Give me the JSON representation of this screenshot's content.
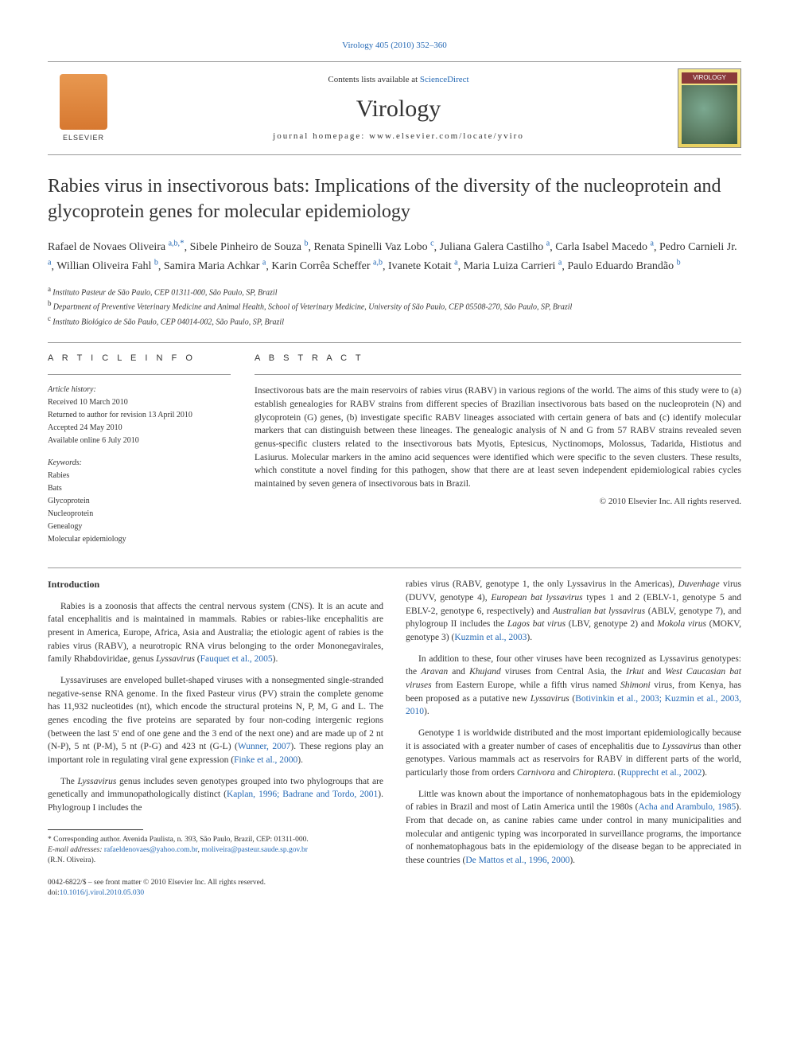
{
  "top_link": "Virology 405 (2010) 352–360",
  "header": {
    "contents_prefix": "Contents lists available at ",
    "contents_link": "ScienceDirect",
    "journal": "Virology",
    "homepage_prefix": "journal homepage: ",
    "homepage": "www.elsevier.com/locate/yviro",
    "publisher_label": "ELSEVIER",
    "cover_label": "VIROLOGY"
  },
  "title": "Rabies virus in insectivorous bats: Implications of the diversity of the nucleoprotein and glycoprotein genes for molecular epidemiology",
  "authors": [
    {
      "name": "Rafael de Novaes Oliveira",
      "aff": "a,b,",
      "star": "*"
    },
    {
      "name": "Sibele Pinheiro de Souza",
      "aff": "b"
    },
    {
      "name": "Renata Spinelli Vaz Lobo",
      "aff": "c"
    },
    {
      "name": "Juliana Galera Castilho",
      "aff": "a"
    },
    {
      "name": "Carla Isabel Macedo",
      "aff": "a"
    },
    {
      "name": "Pedro Carnieli Jr.",
      "aff": "a"
    },
    {
      "name": "Willian Oliveira Fahl",
      "aff": "b"
    },
    {
      "name": "Samira Maria Achkar",
      "aff": "a"
    },
    {
      "name": "Karin Corrêa Scheffer",
      "aff": "a,b"
    },
    {
      "name": "Ivanete Kotait",
      "aff": "a"
    },
    {
      "name": "Maria Luiza Carrieri",
      "aff": "a"
    },
    {
      "name": "Paulo Eduardo Brandão",
      "aff": "b"
    }
  ],
  "affiliations": [
    {
      "sup": "a",
      "text": "Instituto Pasteur de São Paulo, CEP 01311-000, São Paulo, SP, Brazil"
    },
    {
      "sup": "b",
      "text": "Department of Preventive Veterinary Medicine and Animal Health, School of Veterinary Medicine, University of São Paulo, CEP 05508-270, São Paulo, SP, Brazil"
    },
    {
      "sup": "c",
      "text": "Instituto Biológico de São Paulo, CEP 04014-002, São Paulo, SP, Brazil"
    }
  ],
  "info_heading": "A R T I C L E   I N F O",
  "abstract_heading": "A B S T R A C T",
  "history": {
    "label": "Article history:",
    "received": "Received 10 March 2010",
    "revised": "Returned to author for revision 13 April 2010",
    "accepted": "Accepted 24 May 2010",
    "online": "Available online 6 July 2010"
  },
  "keywords": {
    "label": "Keywords:",
    "items": [
      "Rabies",
      "Bats",
      "Glycoprotein",
      "Nucleoprotein",
      "Genealogy",
      "Molecular epidemiology"
    ]
  },
  "abstract": "Insectivorous bats are the main reservoirs of rabies virus (RABV) in various regions of the world. The aims of this study were to (a) establish genealogies for RABV strains from different species of Brazilian insectivorous bats based on the nucleoprotein (N) and glycoprotein (G) genes, (b) investigate specific RABV lineages associated with certain genera of bats and (c) identify molecular markers that can distinguish between these lineages. The genealogic analysis of N and G from 57 RABV strains revealed seven genus-specific clusters related to the insectivorous bats Myotis, Eptesicus, Nyctinomops, Molossus, Tadarida, Histiotus and Lasiurus. Molecular markers in the amino acid sequences were identified which were specific to the seven clusters. These results, which constitute a novel finding for this pathogen, show that there are at least seven independent epidemiological rabies cycles maintained by seven genera of insectivorous bats in Brazil.",
  "copyright": "© 2010 Elsevier Inc. All rights reserved.",
  "intro_heading": "Introduction",
  "left_col": {
    "p1_a": "Rabies is a zoonosis that affects the central nervous system (CNS). It is an acute and fatal encephalitis and is maintained in mammals. Rabies or rabies-like encephalitis are present in America, Europe, Africa, Asia and Australia; the etiologic agent of rabies is the rabies virus (RABV), a neurotropic RNA virus belonging to the order Mononegavirales, family Rhabdoviridae, genus ",
    "p1_i": "Lyssavirus",
    "p1_b": " (",
    "p1_link": "Fauquet et al., 2005",
    "p1_c": ").",
    "p2_a": "Lyssaviruses are enveloped bullet-shaped viruses with a nonsegmented single-stranded negative-sense RNA genome. In the fixed Pasteur virus (PV) strain the complete genome has 11,932 nucleotides (nt), which encode the structural proteins N, P, M, G and L. The genes encoding the five proteins are separated by four non-coding intergenic regions (between the last 5' end of one gene and the 3 end of the next one) and are made up of 2 nt (N-P), 5 nt (P-M), 5 nt (P-G) and 423 nt (G-L) (",
    "p2_link": "Wunner, 2007",
    "p2_b": "). These regions play an important role in regulating viral gene expression (",
    "p2_link2": "Finke et al., 2000",
    "p2_c": ").",
    "p3_a": "The ",
    "p3_i1": "Lyssavirus",
    "p3_b": " genus includes seven genotypes grouped into two phylogroups that are genetically and immunopathologically distinct (",
    "p3_link": "Kaplan, 1996; Badrane and Tordo, 2001",
    "p3_c": "). Phylogroup I includes the"
  },
  "right_col": {
    "p1_a": "rabies virus (RABV, genotype 1, the only Lyssavirus in the Americas), ",
    "p1_i1": "Duvenhage",
    "p1_b": " virus (DUVV, genotype 4), ",
    "p1_i2": "European bat lyssavirus",
    "p1_c": " types 1 and 2 (EBLV-1, genotype 5 and EBLV-2, genotype 6, respectively) and ",
    "p1_i3": "Australian bat lyssavirus",
    "p1_d": " (ABLV, genotype 7), and phylogroup II includes the ",
    "p1_i4": "Lagos bat virus",
    "p1_e": " (LBV, genotype 2) and ",
    "p1_i5": "Mokola virus",
    "p1_f": " (MOKV, genotype 3) (",
    "p1_link": "Kuzmin et al., 2003",
    "p1_g": ").",
    "p2_a": "In addition to these, four other viruses have been recognized as Lyssavirus genotypes: the ",
    "p2_i1": "Aravan",
    "p2_b": " and ",
    "p2_i2": "Khujand",
    "p2_c": " viruses from Central Asia, the ",
    "p2_i3": "Irkut",
    "p2_d": " and ",
    "p2_i4": "West Caucasian bat viruses",
    "p2_e": " from Eastern Europe, while a fifth virus named ",
    "p2_i5": "Shimoni",
    "p2_f": " virus, from Kenya, has been proposed as a putative new ",
    "p2_i6": "Lyssavirus",
    "p2_g": " (",
    "p2_link": "Botivinkin et al., 2003; Kuzmin et al., 2003, 2010",
    "p2_h": ").",
    "p3_a": "Genotype 1 is worldwide distributed and the most important epidemiologically because it is associated with a greater number of cases of encephalitis due to ",
    "p3_i1": "Lyssavirus",
    "p3_b": " than other genotypes. Various mammals act as reservoirs for RABV in different parts of the world, particularly those from orders ",
    "p3_i2": "Carnivora",
    "p3_c": " and ",
    "p3_i3": "Chiroptera",
    "p3_d": ". (",
    "p3_link": "Rupprecht et al., 2002",
    "p3_e": ").",
    "p4_a": "Little was known about the importance of nonhematophagous bats in the epidemiology of rabies in Brazil and most of Latin America until the 1980s (",
    "p4_link1": "Acha and Arambulo, 1985",
    "p4_b": "). From that decade on, as canine rabies came under control in many municipalities and molecular and antigenic typing was incorporated in surveillance programs, the importance of nonhematophagous bats in the epidemiology of the disease began to be appreciated in these countries (",
    "p4_link2": "De Mattos et al., 1996, 2000",
    "p4_c": ")."
  },
  "footnote": {
    "corr_label": "* Corresponding author. Avenida Paulista, n. 393, São Paulo, Brazil, CEP: 01311-000.",
    "email_label": "E-mail addresses:",
    "email1": "rafaeldenovaes@yahoo.com.br",
    "email_sep": ", ",
    "email2": "rnoliveira@pasteur.saude.sp.gov.br",
    "name": "(R.N. Oliveira)."
  },
  "doi": {
    "front_matter": "0042-6822/$ – see front matter © 2010 Elsevier Inc. All rights reserved.",
    "doi_label": "doi:",
    "doi_value": "10.1016/j.virol.2010.05.030"
  }
}
